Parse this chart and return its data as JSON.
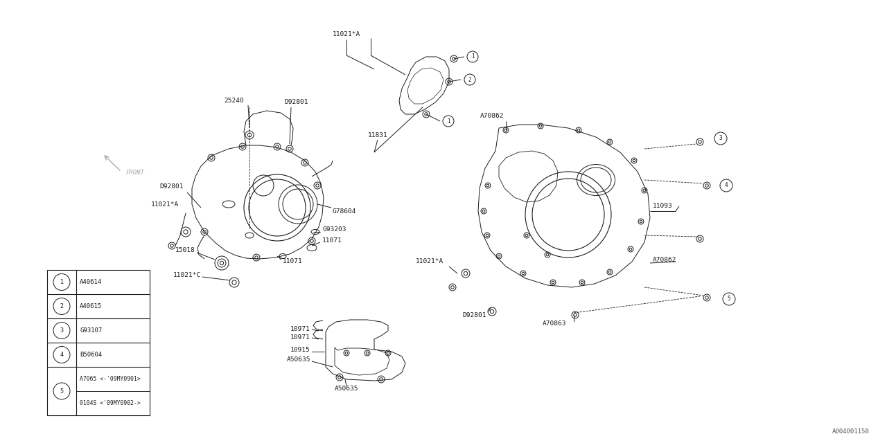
{
  "bg_color": "#ffffff",
  "line_color": "#1a1a1a",
  "corner_code": "A004001158",
  "legend": [
    [
      "1",
      "A40614"
    ],
    [
      "2",
      "A40615"
    ],
    [
      "3",
      "G93107"
    ],
    [
      "4",
      "B50604"
    ],
    [
      "5",
      "A7065 <-'09MY0901>",
      "0104S <'09MY0902->"
    ]
  ]
}
